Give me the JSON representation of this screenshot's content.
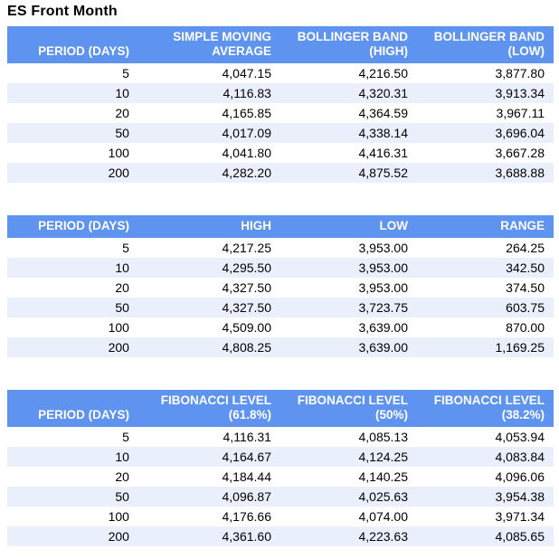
{
  "page": {
    "title": "ES Front Month"
  },
  "colors": {
    "header_bg": "#5E94EF",
    "header_text": "#FFFFFF",
    "row_bg": "#FFFFFF",
    "row_alt_bg": "#E9EFFB",
    "body_text": "#000000"
  },
  "tables": [
    {
      "id": "moving-average-bollinger",
      "columns": [
        "PERIOD (DAYS)",
        "SIMPLE MOVING AVERAGE",
        "BOLLINGER BAND (HIGH)",
        "BOLLINGER BAND (LOW)"
      ],
      "rows": [
        [
          "5",
          "4,047.15",
          "4,216.50",
          "3,877.80"
        ],
        [
          "10",
          "4,116.83",
          "4,320.31",
          "3,913.34"
        ],
        [
          "20",
          "4,165.85",
          "4,364.59",
          "3,967.11"
        ],
        [
          "50",
          "4,017.09",
          "4,338.14",
          "3,696.04"
        ],
        [
          "100",
          "4,041.80",
          "4,416.31",
          "3,667.28"
        ],
        [
          "200",
          "4,282.20",
          "4,875.52",
          "3,688.88"
        ]
      ]
    },
    {
      "id": "high-low-range",
      "columns": [
        "PERIOD (DAYS)",
        "HIGH",
        "LOW",
        "RANGE"
      ],
      "rows": [
        [
          "5",
          "4,217.25",
          "3,953.00",
          "264.25"
        ],
        [
          "10",
          "4,295.50",
          "3,953.00",
          "342.50"
        ],
        [
          "20",
          "4,327.50",
          "3,953.00",
          "374.50"
        ],
        [
          "50",
          "4,327.50",
          "3,723.75",
          "603.75"
        ],
        [
          "100",
          "4,509.00",
          "3,639.00",
          "870.00"
        ],
        [
          "200",
          "4,808.25",
          "3,639.00",
          "1,169.25"
        ]
      ]
    },
    {
      "id": "fibonacci-levels",
      "columns": [
        "PERIOD (DAYS)",
        "FIBONACCI LEVEL (61.8%)",
        "FIBONACCI LEVEL (50%)",
        "FIBONACCI LEVEL (38.2%)"
      ],
      "rows": [
        [
          "5",
          "4,116.31",
          "4,085.13",
          "4,053.94"
        ],
        [
          "10",
          "4,164.67",
          "4,124.25",
          "4,083.84"
        ],
        [
          "20",
          "4,184.44",
          "4,140.25",
          "4,096.06"
        ],
        [
          "50",
          "4,096.87",
          "4,025.63",
          "3,954.38"
        ],
        [
          "100",
          "4,176.66",
          "4,074.00",
          "3,971.34"
        ],
        [
          "200",
          "4,361.60",
          "4,223.63",
          "4,085.65"
        ]
      ]
    }
  ],
  "chart_data": [
    {
      "type": "table",
      "title": "ES Front Month",
      "columns": [
        "PERIOD (DAYS)",
        "SIMPLE MOVING AVERAGE",
        "BOLLINGER BAND (HIGH)",
        "BOLLINGER BAND (LOW)"
      ],
      "rows": [
        [
          5,
          4047.15,
          4216.5,
          3877.8
        ],
        [
          10,
          4116.83,
          4320.31,
          3913.34
        ],
        [
          20,
          4165.85,
          4364.59,
          3967.11
        ],
        [
          50,
          4017.09,
          4338.14,
          3696.04
        ],
        [
          100,
          4041.8,
          4416.31,
          3667.28
        ],
        [
          200,
          4282.2,
          4875.52,
          3688.88
        ]
      ]
    },
    {
      "type": "table",
      "title": "ES Front Month",
      "columns": [
        "PERIOD (DAYS)",
        "HIGH",
        "LOW",
        "RANGE"
      ],
      "rows": [
        [
          5,
          4217.25,
          3953.0,
          264.25
        ],
        [
          10,
          4295.5,
          3953.0,
          342.5
        ],
        [
          20,
          4327.5,
          3953.0,
          374.5
        ],
        [
          50,
          4327.5,
          3723.75,
          603.75
        ],
        [
          100,
          4509.0,
          3639.0,
          870.0
        ],
        [
          200,
          4808.25,
          3639.0,
          1169.25
        ]
      ]
    },
    {
      "type": "table",
      "title": "ES Front Month",
      "columns": [
        "PERIOD (DAYS)",
        "FIBONACCI LEVEL (61.8%)",
        "FIBONACCI LEVEL (50%)",
        "FIBONACCI LEVEL (38.2%)"
      ],
      "rows": [
        [
          5,
          4116.31,
          4085.13,
          4053.94
        ],
        [
          10,
          4164.67,
          4124.25,
          4083.84
        ],
        [
          20,
          4184.44,
          4140.25,
          4096.06
        ],
        [
          50,
          4096.87,
          4025.63,
          3954.38
        ],
        [
          100,
          4176.66,
          4074.0,
          3971.34
        ],
        [
          200,
          4361.6,
          4223.63,
          4085.65
        ]
      ]
    }
  ]
}
